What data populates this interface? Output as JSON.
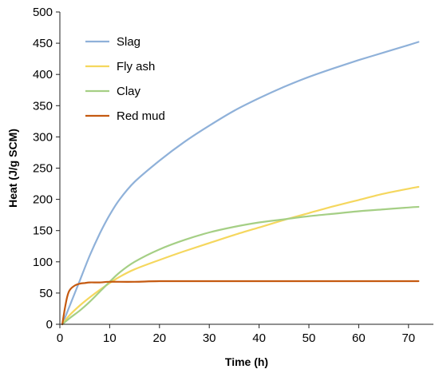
{
  "chart_data": {
    "type": "line",
    "xlabel": "Time (h)",
    "ylabel": "Heat  (J/g SCM)",
    "xlim": [
      0,
      75
    ],
    "ylim": [
      0,
      500
    ],
    "xticks": [
      0,
      10,
      20,
      30,
      40,
      50,
      60,
      70
    ],
    "yticks": [
      0,
      50,
      100,
      150,
      200,
      250,
      300,
      350,
      400,
      450,
      500
    ],
    "grid": false,
    "legend_position": "top-left",
    "series": [
      {
        "name": "Slag",
        "color": "#8fb1d9",
        "x": [
          0.5,
          2,
          4,
          6,
          8,
          10,
          12,
          15,
          20,
          25,
          30,
          35,
          40,
          45,
          50,
          55,
          60,
          65,
          70,
          72
        ],
        "y": [
          0,
          30,
          70,
          110,
          145,
          175,
          200,
          228,
          262,
          292,
          318,
          342,
          362,
          380,
          396,
          410,
          423,
          435,
          447,
          452
        ]
      },
      {
        "name": "Fly ash",
        "color": "#f5d75e",
        "x": [
          0.5,
          2,
          4,
          6,
          8,
          10,
          12,
          15,
          20,
          25,
          30,
          35,
          40,
          45,
          50,
          55,
          60,
          65,
          70,
          72
        ],
        "y": [
          0,
          15,
          30,
          43,
          55,
          66,
          76,
          88,
          103,
          117,
          130,
          143,
          155,
          167,
          178,
          189,
          199,
          209,
          217,
          220
        ]
      },
      {
        "name": "Clay",
        "color": "#a5cf85",
        "x": [
          0.5,
          2,
          4,
          6,
          8,
          10,
          12,
          15,
          20,
          25,
          30,
          35,
          40,
          45,
          50,
          55,
          60,
          65,
          70,
          72
        ],
        "y": [
          0,
          10,
          22,
          36,
          52,
          68,
          83,
          100,
          120,
          135,
          147,
          156,
          163,
          168,
          173,
          177,
          181,
          184,
          187,
          188
        ]
      },
      {
        "name": "Red mud",
        "color": "#c55a11",
        "x": [
          0.5,
          1,
          1.5,
          2,
          3,
          4,
          5,
          6,
          8,
          10,
          15,
          20,
          30,
          40,
          50,
          60,
          70,
          72
        ],
        "y": [
          0,
          25,
          45,
          55,
          62,
          65,
          66,
          67,
          67,
          68,
          68,
          69,
          69,
          69,
          69,
          69,
          69,
          69
        ]
      }
    ]
  }
}
